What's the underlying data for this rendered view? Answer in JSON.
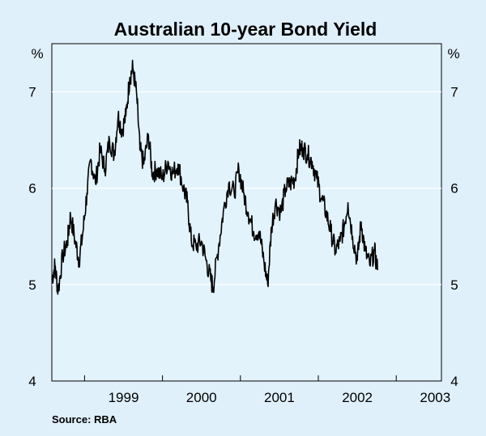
{
  "chart_data": {
    "type": "line",
    "title": "Australian 10-year Bond Yield",
    "y_unit_left": "%",
    "y_unit_right": "%",
    "ylim": [
      4,
      7.5
    ],
    "y_ticks": [
      4,
      5,
      6,
      7
    ],
    "xlim": [
      1998.58,
      2003.58
    ],
    "x_ticks": [
      "1999",
      "2000",
      "2001",
      "2002",
      "2003"
    ],
    "grid": true,
    "source": "Source: RBA",
    "series": [
      {
        "values_anchor": [
          [
            1998.58,
            5.05
          ],
          [
            1998.62,
            5.2
          ],
          [
            1998.66,
            4.93
          ],
          [
            1998.72,
            5.3
          ],
          [
            1998.78,
            5.45
          ],
          [
            1998.82,
            5.72
          ],
          [
            1998.88,
            5.45
          ],
          [
            1998.93,
            5.25
          ],
          [
            1998.98,
            5.55
          ],
          [
            1999.03,
            5.95
          ],
          [
            1999.08,
            6.3
          ],
          [
            1999.14,
            6.05
          ],
          [
            1999.2,
            6.4
          ],
          [
            1999.26,
            6.2
          ],
          [
            1999.32,
            6.5
          ],
          [
            1999.38,
            6.35
          ],
          [
            1999.43,
            6.75
          ],
          [
            1999.48,
            6.6
          ],
          [
            1999.53,
            6.75
          ],
          [
            1999.58,
            7.15
          ],
          [
            1999.62,
            7.25
          ],
          [
            1999.67,
            6.95
          ],
          [
            1999.71,
            6.4
          ],
          [
            1999.76,
            6.25
          ],
          [
            1999.82,
            6.55
          ],
          [
            1999.87,
            6.15
          ],
          [
            1999.93,
            6.2
          ],
          [
            2000.0,
            6.1
          ],
          [
            2000.07,
            6.28
          ],
          [
            2000.13,
            6.15
          ],
          [
            2000.2,
            6.25
          ],
          [
            2000.27,
            6.0
          ],
          [
            2000.32,
            5.85
          ],
          [
            2000.37,
            5.45
          ],
          [
            2000.43,
            5.4
          ],
          [
            2000.5,
            5.45
          ],
          [
            2000.56,
            5.25
          ],
          [
            2000.62,
            5.05
          ],
          [
            2000.65,
            4.97
          ],
          [
            2000.72,
            5.4
          ],
          [
            2000.78,
            5.75
          ],
          [
            2000.85,
            6.05
          ],
          [
            2000.92,
            5.95
          ],
          [
            2000.98,
            6.2
          ],
          [
            2001.04,
            5.95
          ],
          [
            2001.1,
            5.75
          ],
          [
            2001.17,
            5.55
          ],
          [
            2001.24,
            5.55
          ],
          [
            2001.3,
            5.25
          ],
          [
            2001.35,
            5.0
          ],
          [
            2001.4,
            5.6
          ],
          [
            2001.45,
            5.85
          ],
          [
            2001.52,
            5.75
          ],
          [
            2001.58,
            6.0
          ],
          [
            2001.64,
            6.05
          ],
          [
            2001.7,
            6.1
          ],
          [
            2001.75,
            6.4
          ],
          [
            2001.8,
            6.42
          ],
          [
            2001.86,
            6.35
          ],
          [
            2001.92,
            6.28
          ],
          [
            2001.98,
            6.1
          ],
          [
            2002.04,
            5.9
          ],
          [
            2002.1,
            5.75
          ],
          [
            2002.16,
            5.55
          ],
          [
            2002.22,
            5.35
          ],
          [
            2002.28,
            5.45
          ],
          [
            2002.33,
            5.6
          ],
          [
            2002.38,
            5.85
          ],
          [
            2002.44,
            5.5
          ],
          [
            2002.5,
            5.25
          ],
          [
            2002.55,
            5.65
          ],
          [
            2002.6,
            5.35
          ],
          [
            2002.66,
            5.2
          ],
          [
            2002.72,
            5.35
          ],
          [
            2002.76,
            5.15
          ]
        ]
      }
    ]
  }
}
